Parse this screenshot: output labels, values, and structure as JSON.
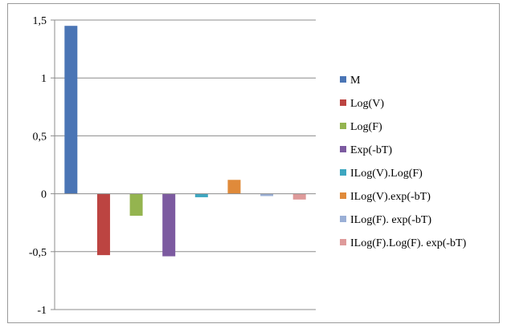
{
  "chart_data": {
    "type": "bar",
    "title": "",
    "xlabel": "",
    "ylabel": "",
    "ylim": [
      -1,
      1.5
    ],
    "yticks": [
      -1,
      -0.5,
      0,
      0.5,
      1,
      1.5
    ],
    "ytick_labels": [
      "-1",
      "-0,5",
      "0",
      "0,5",
      "1",
      "1,5"
    ],
    "grid": "horizontal",
    "legend_position": "right",
    "series": [
      {
        "name": "M",
        "value": 1.45,
        "color": "#4a75b5"
      },
      {
        "name": "Log(V)",
        "value": -0.53,
        "color": "#bc4441"
      },
      {
        "name": "Log(F)",
        "value": -0.19,
        "color": "#94b44f"
      },
      {
        "name": "Exp(-bT)",
        "value": -0.54,
        "color": "#7c5aa0"
      },
      {
        "name": "ILog(V).Log(F)",
        "value": -0.03,
        "color": "#3da6c0"
      },
      {
        "name": "ILog(V).exp(-bT)",
        "value": 0.12,
        "color": "#e08a3a"
      },
      {
        "name": "ILog(F). exp(-bT)",
        "value": -0.02,
        "color": "#9aafd6"
      },
      {
        "name": "ILog(F).Log(F). exp(-bT)",
        "value": -0.05,
        "color": "#de9a9a"
      }
    ]
  }
}
